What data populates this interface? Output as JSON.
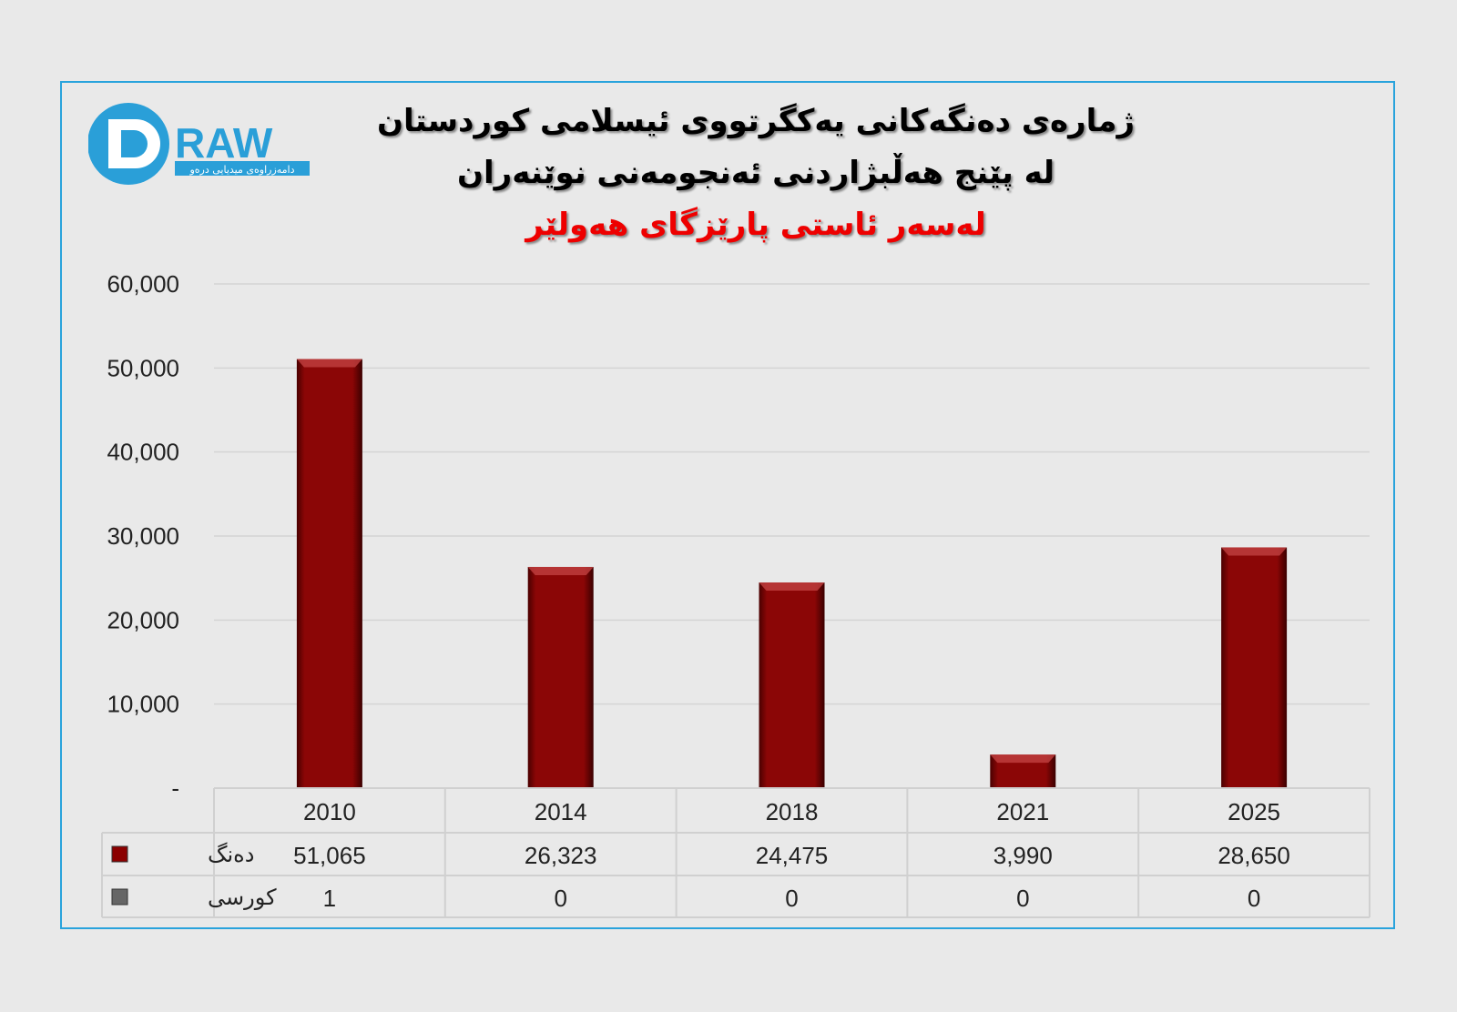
{
  "logo": {
    "text": "DRAW",
    "subtitle": "دامەزراوەی میدیایی درەو"
  },
  "chart_data": {
    "type": "bar",
    "title_lines": [
      "ژمارەی دەنگەکانی یەکگرتووی ئیسلامی کوردستان",
      "لە پێنج هەڵبژاردنی ئەنجومەنی نوێنەران"
    ],
    "subtitle": "لەسەر ئاستی پارێزگای هەولێر",
    "categories": [
      "2010",
      "2014",
      "2018",
      "2021",
      "2025"
    ],
    "series": [
      {
        "name": "دەنگ",
        "values": [
          51065,
          26323,
          24475,
          3990,
          28650
        ],
        "labels": [
          "51,065",
          "26,323",
          "24,475",
          "3,990",
          "28,650"
        ],
        "color": "#8b0000"
      },
      {
        "name": "کورسی",
        "values": [
          1,
          0,
          0,
          0,
          0
        ],
        "labels": [
          "1",
          "0",
          "0",
          "0",
          "0"
        ],
        "color": "#666666"
      }
    ],
    "yticks": [
      "-",
      "10,000",
      "20,000",
      "30,000",
      "40,000",
      "50,000",
      "60,000"
    ],
    "ylim": [
      0,
      60000
    ],
    "grid": true,
    "legend": "data-table"
  }
}
